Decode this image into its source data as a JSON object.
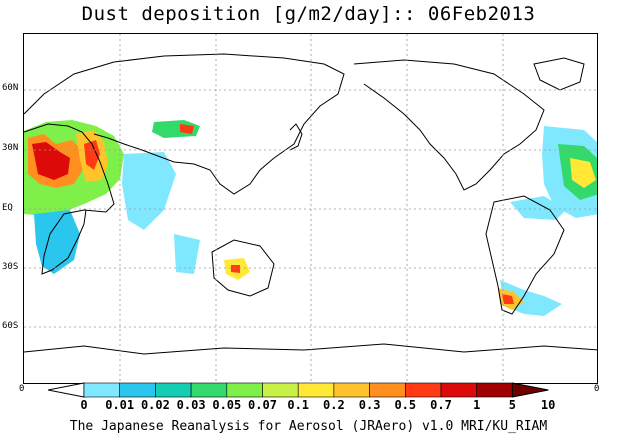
{
  "title": "Dust deposition [g/m2/day]:: 06Feb2013",
  "footer": "The Japanese Reanalysis for Aerosol (JRAero) v1.0 MRI/KU_RIAM",
  "lat_labels": [
    "60N",
    "30N",
    "EQ",
    "30S",
    "60S"
  ],
  "lon_labels": [
    "0",
    "0"
  ],
  "colorbar": {
    "labels": [
      "0",
      "0.01",
      "0.02",
      "0.03",
      "0.05",
      "0.07",
      "0.1",
      "0.2",
      "0.3",
      "0.5",
      "0.7",
      "1",
      "5",
      "10"
    ],
    "colors": [
      "#ffffff",
      "#7fe8ff",
      "#2bc6ee",
      "#14cdb2",
      "#33d96a",
      "#7ff04a",
      "#c8f046",
      "#ffe936",
      "#ffc42c",
      "#ff9020",
      "#ff3a14",
      "#dd0a0a",
      "#a00000",
      "#700000"
    ]
  },
  "map": {
    "land_color": "#ffffff",
    "coast_color": "#000000",
    "grid_color": "#9a9a9a",
    "projection": "cylindrical, centered at 180"
  }
}
